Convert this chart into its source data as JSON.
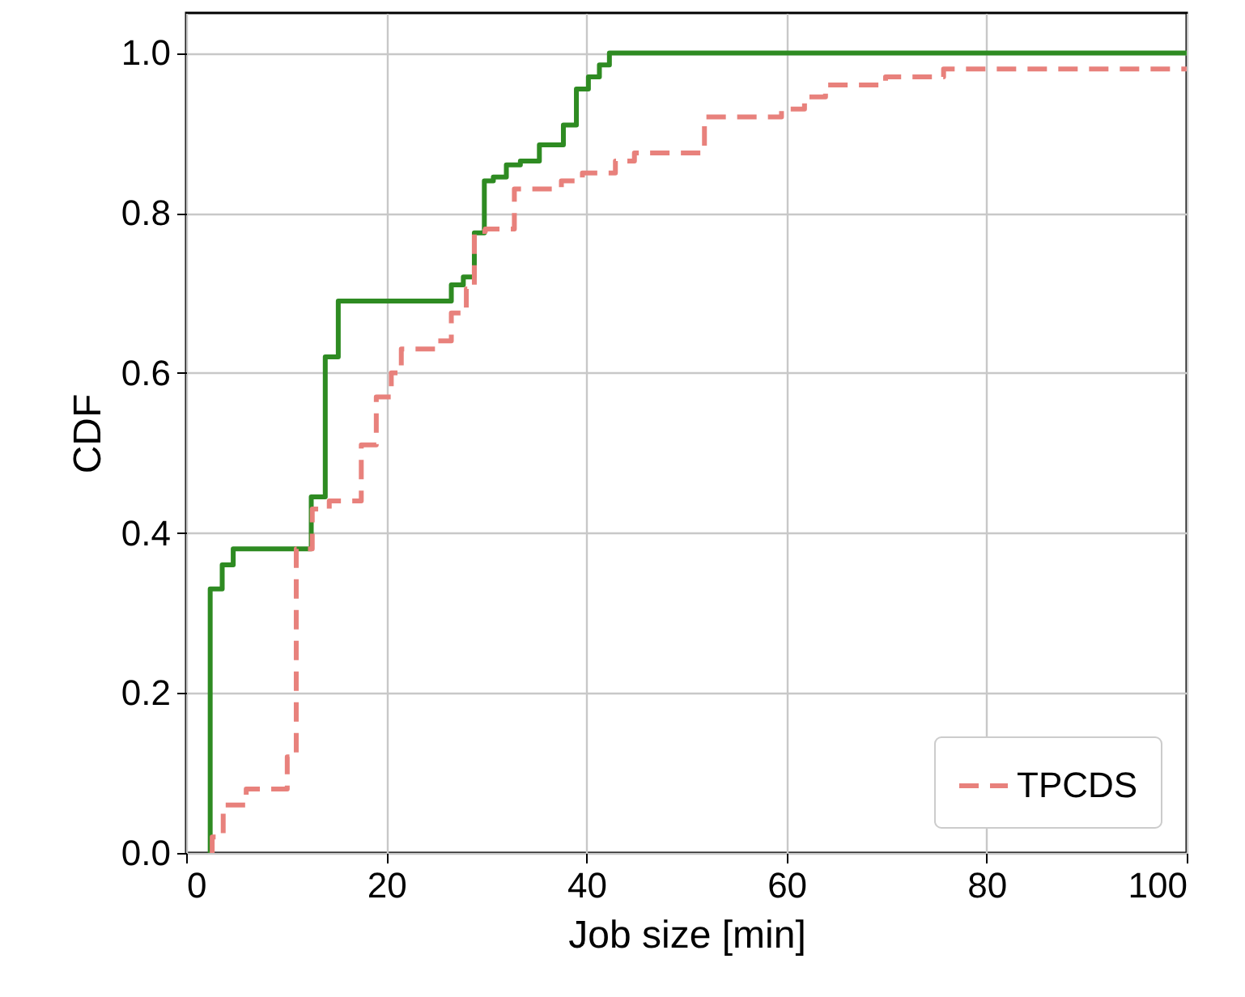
{
  "chart_data": {
    "type": "step",
    "xlabel": "Job size [min]",
    "ylabel": "CDF",
    "xlim": [
      0,
      100
    ],
    "xticks": [
      0,
      20,
      40,
      60,
      80,
      100
    ],
    "ylim": [
      0,
      1.05
    ],
    "yticks": [
      {
        "value": 0,
        "label": "0.0"
      },
      {
        "value": 0.2,
        "label": "0.2"
      },
      {
        "value": 0.4,
        "label": "0.4"
      },
      {
        "value": 0.6,
        "label": "0.6"
      },
      {
        "value": 0.8,
        "label": "0.8"
      },
      {
        "value": 1,
        "label": "1.0"
      }
    ],
    "grid": true,
    "legend": "bottom right",
    "series": [
      {
        "color": "#2e8b22",
        "line_style": "solid",
        "x": [
          2.4,
          2.4,
          3.6,
          4.7,
          12.5,
          13.9,
          15.2,
          26.5,
          27.7,
          28.8,
          29.8,
          30.7,
          32,
          33.4,
          35.3,
          37.7,
          39,
          40.2,
          41.3,
          42.3,
          100
        ],
        "values": [
          0,
          0.33,
          0.36,
          0.38,
          0.445,
          0.62,
          0.69,
          0.71,
          0.72,
          0.775,
          0.84,
          0.845,
          0.86,
          0.865,
          0.885,
          0.91,
          0.955,
          0.97,
          0.985,
          1,
          1
        ]
      },
      {
        "name": "TPCDS",
        "color": "#e8817c",
        "line_style": "dashed",
        "x": [
          2.6,
          2.6,
          3.7,
          6,
          10.1,
          11,
          12.6,
          14.3,
          17.5,
          19,
          20.5,
          21.5,
          25,
          26.5,
          28,
          28.8,
          29.9,
          32.8,
          37.5,
          39.6,
          42.9,
          44.8,
          51.8,
          59.5,
          61.8,
          63.9,
          69.9,
          75.7,
          100
        ],
        "values": [
          0,
          0.02,
          0.06,
          0.08,
          0.12,
          0.38,
          0.43,
          0.44,
          0.51,
          0.57,
          0.6,
          0.63,
          0.64,
          0.675,
          0.705,
          0.777,
          0.78,
          0.83,
          0.84,
          0.85,
          0.865,
          0.875,
          0.92,
          0.93,
          0.945,
          0.96,
          0.97,
          0.98,
          0.98
        ]
      }
    ]
  }
}
